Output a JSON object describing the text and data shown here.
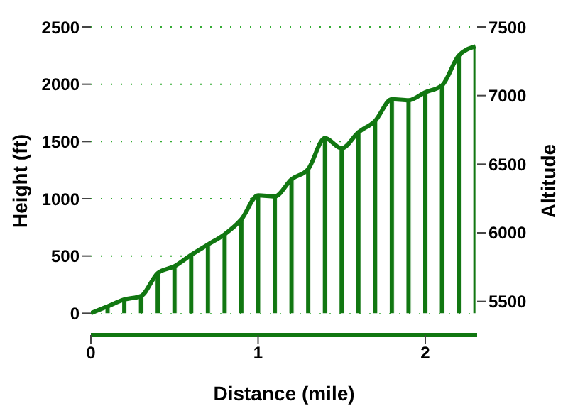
{
  "chart_data": {
    "type": "area",
    "xlabel": "Distance (mile)",
    "ylabel": "Height (ft)",
    "y2label": "Altitude",
    "x": [
      0,
      0.1,
      0.2,
      0.3,
      0.4,
      0.5,
      0.6,
      0.7,
      0.8,
      0.9,
      1.0,
      1.1,
      1.2,
      1.3,
      1.4,
      1.5,
      1.6,
      1.7,
      1.8,
      1.9,
      2.0,
      2.1,
      2.2,
      2.3
    ],
    "series": [
      {
        "color": "#117711",
        "values": [
          0,
          60,
          120,
          150,
          350,
          410,
          510,
          600,
          690,
          820,
          1030,
          1020,
          1170,
          1260,
          1530,
          1440,
          1580,
          1680,
          1870,
          1860,
          1930,
          1990,
          2250,
          2330
        ]
      }
    ],
    "xlim": [
      0,
      2.31
    ],
    "xticks": [
      0,
      1,
      2
    ],
    "ylim": [
      -190,
      2500
    ],
    "yticks": [
      0,
      500,
      1000,
      1500,
      2000,
      2500
    ],
    "y2lim": [
      5255,
      7500
    ],
    "y2ticks": [
      5500,
      6000,
      6500,
      7000,
      7500
    ],
    "grid": "y"
  }
}
